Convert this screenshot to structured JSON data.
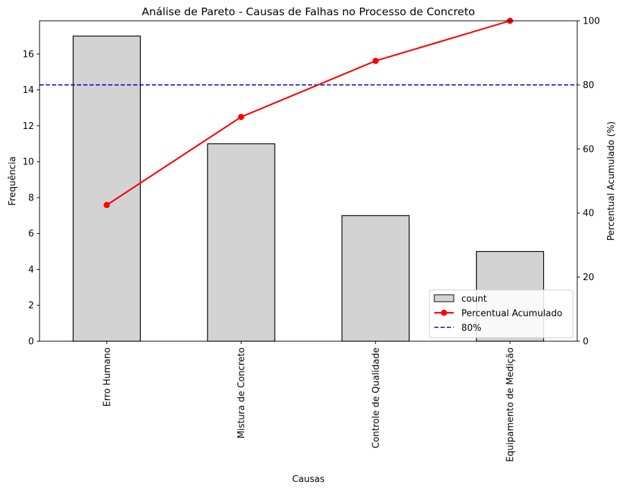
{
  "chart_data": {
    "type": "bar",
    "title": "Análise de Pareto - Causas de Falhas no Processo de Concreto",
    "xlabel": "Causas",
    "ylabel": "Frequência",
    "y2label": "Percentual Acumulado (%)",
    "categories": [
      "Erro Humano",
      "Mistura de Concreto",
      "Controle de Qualidade",
      "Equipamento de Medição"
    ],
    "series": [
      {
        "name": "count",
        "kind": "bar",
        "axis": "left",
        "values": [
          17,
          11,
          7,
          5
        ],
        "color": "#d3d3d3",
        "edgecolor": "#000000"
      },
      {
        "name": "Percentual Acumulado",
        "kind": "line",
        "axis": "right",
        "values": [
          42.5,
          70.0,
          87.5,
          100.0
        ],
        "color": "#ff0000",
        "marker": "circle"
      }
    ],
    "reference_line": {
      "name": "80%",
      "axis": "right",
      "value": 80,
      "color": "#0000cc",
      "style": "dashed"
    },
    "ylim": [
      0,
      17.85
    ],
    "y2lim": [
      0,
      100
    ],
    "yticks": [
      "0",
      "2",
      "4",
      "6",
      "8",
      "10",
      "12",
      "14",
      "16"
    ],
    "y2ticks": [
      "0",
      "20",
      "40",
      "60",
      "80",
      "100"
    ],
    "grid": false,
    "legend_position": "lower-right"
  }
}
